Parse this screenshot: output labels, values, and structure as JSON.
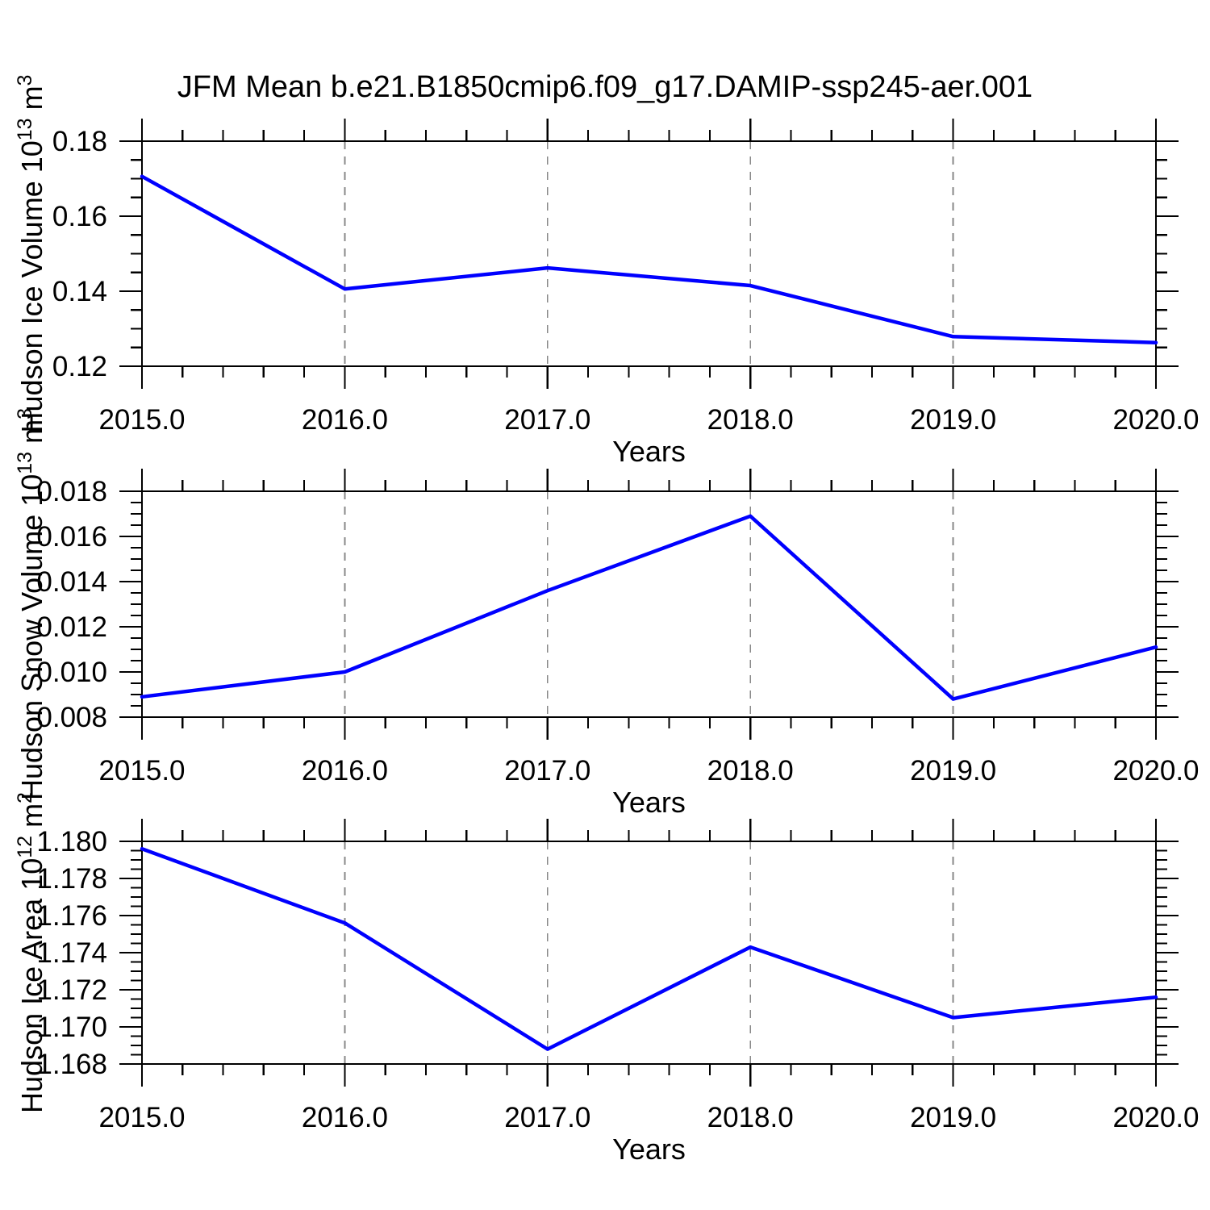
{
  "title": "JFM Mean b.e21.B1850cmip6.f09_g17.DAMIP-ssp245-aer.001",
  "colors": {
    "line": "#0000ff",
    "grid": "#888888",
    "axis": "#000000",
    "text": "#000000",
    "background": "#ffffff"
  },
  "chart_data": [
    {
      "type": "line",
      "id": "hudson-ice-volume",
      "ylabel": "Hudson Ice Volume 10^13 m^3",
      "ylabel_parts": [
        {
          "t": "Hudson Ice Volume 10"
        },
        {
          "t": "13",
          "sup": true
        },
        {
          "t": " m"
        },
        {
          "t": "3",
          "sup": true
        }
      ],
      "xlabel": "Years",
      "x": [
        2015.0,
        2016.0,
        2017.0,
        2018.0,
        2019.0,
        2020.0
      ],
      "values": [
        0.1706,
        0.1406,
        0.1462,
        0.1415,
        0.1279,
        0.1263
      ],
      "xlim": [
        2015.0,
        2020.0
      ],
      "ylim": [
        0.12,
        0.18
      ],
      "xticks": {
        "major": 1,
        "minor": 0.2,
        "labels": [
          "2015.0",
          "2016.0",
          "2017.0",
          "2018.0",
          "2019.0",
          "2020.0"
        ]
      },
      "yticks": {
        "major": 0.02,
        "minor": 0.005,
        "values": [
          0.18,
          0.16,
          0.14,
          0.12
        ],
        "labels": [
          "0.18",
          "0.16",
          "0.14",
          "0.12"
        ]
      },
      "grid_x": [
        2016,
        2017,
        2018,
        2019
      ],
      "grid_style": "vertical-dashed",
      "legend": "none"
    },
    {
      "type": "line",
      "id": "hudson-snow-volume",
      "ylabel": "Hudson Snow Volume 10^13 m^3",
      "ylabel_parts": [
        {
          "t": "Hudson Snow Volume 10"
        },
        {
          "t": "13",
          "sup": true
        },
        {
          "t": " m"
        },
        {
          "t": "3",
          "sup": true
        }
      ],
      "xlabel": "Years",
      "x": [
        2015.0,
        2016.0,
        2017.0,
        2018.0,
        2019.0,
        2020.0
      ],
      "values": [
        0.0089,
        0.01,
        0.0136,
        0.0169,
        0.0088,
        0.0111
      ],
      "xlim": [
        2015.0,
        2020.0
      ],
      "ylim": [
        0.008,
        0.018
      ],
      "xticks": {
        "major": 1,
        "minor": 0.2,
        "labels": [
          "2015.0",
          "2016.0",
          "2017.0",
          "2018.0",
          "2019.0",
          "2020.0"
        ]
      },
      "yticks": {
        "major": 0.002,
        "minor": 0.0005,
        "values": [
          0.018,
          0.016,
          0.014,
          0.012,
          0.01,
          0.008
        ],
        "labels": [
          "0.018",
          "0.016",
          "0.014",
          "0.012",
          "0.010",
          "0.008"
        ]
      },
      "grid_x": [
        2016,
        2017,
        2018,
        2019
      ],
      "grid_style": "vertical-dashed",
      "legend": "none"
    },
    {
      "type": "line",
      "id": "hudson-ice-area",
      "ylabel": "Hudson Ice Area 10^12 m^2",
      "ylabel_parts": [
        {
          "t": "Hudson Ice Area 10"
        },
        {
          "t": "12",
          "sup": true
        },
        {
          "t": " m"
        },
        {
          "t": "2",
          "sup": true
        }
      ],
      "xlabel": "Years",
      "x": [
        2015.0,
        2016.0,
        2017.0,
        2018.0,
        2019.0,
        2020.0
      ],
      "values": [
        1.1796,
        1.1756,
        1.1688,
        1.1743,
        1.1705,
        1.1716
      ],
      "xlim": [
        2015.0,
        2020.0
      ],
      "ylim": [
        1.168,
        1.18
      ],
      "xticks": {
        "major": 1,
        "minor": 0.2,
        "labels": [
          "2015.0",
          "2016.0",
          "2017.0",
          "2018.0",
          "2019.0",
          "2020.0"
        ]
      },
      "yticks": {
        "major": 0.002,
        "minor": 0.0005,
        "values": [
          1.18,
          1.178,
          1.176,
          1.174,
          1.172,
          1.17,
          1.168
        ],
        "labels": [
          "1.180",
          "1.178",
          "1.176",
          "1.174",
          "1.172",
          "1.170",
          "1.168"
        ]
      },
      "grid_x": [
        2016,
        2017,
        2018,
        2019
      ],
      "grid_style": "vertical-dashed",
      "legend": "none"
    }
  ]
}
